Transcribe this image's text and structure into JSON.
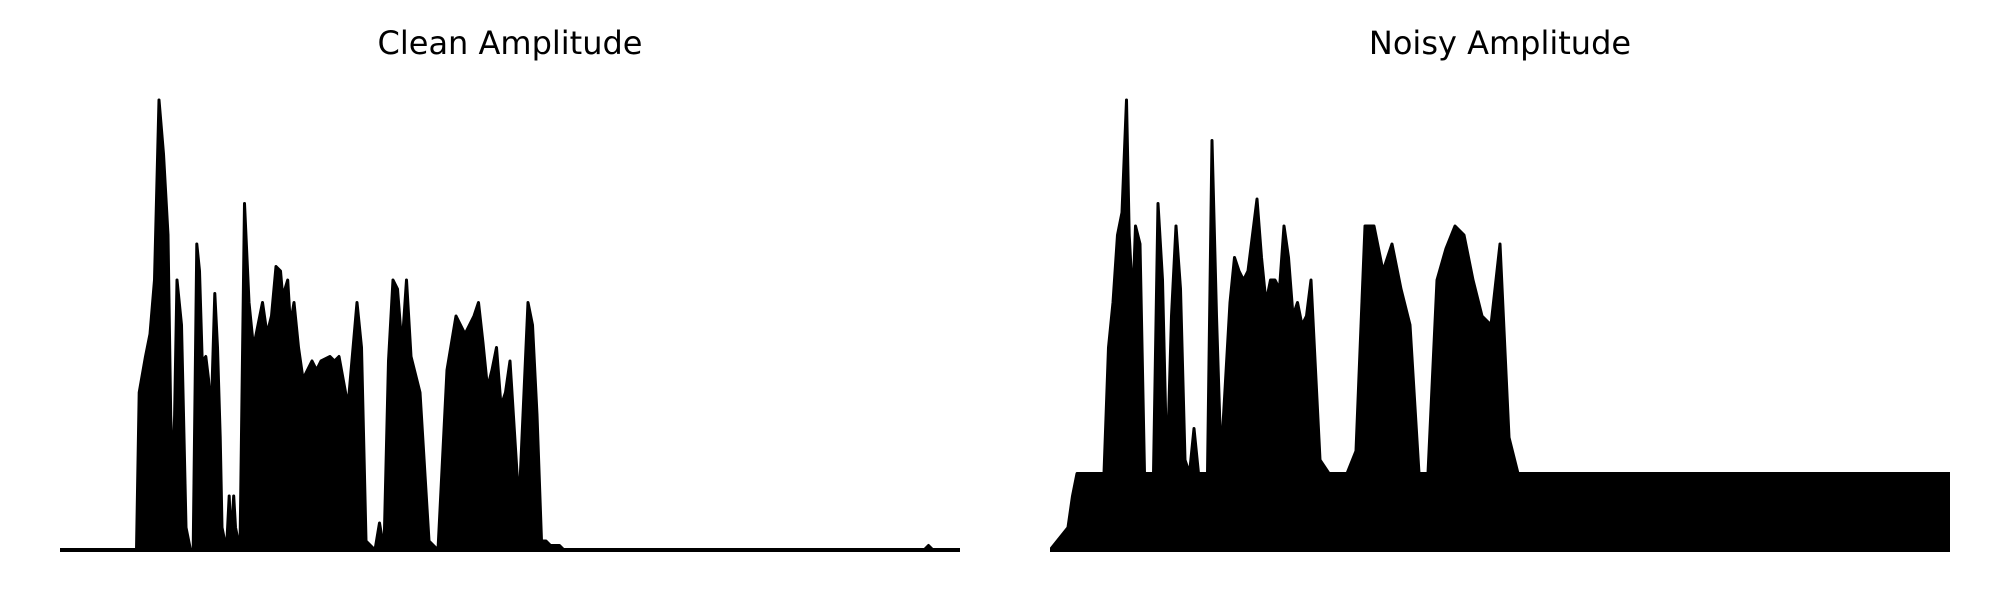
{
  "chart_data": [
    {
      "type": "area",
      "title": "Clean Amplitude",
      "xlabel": "",
      "ylabel": "",
      "xlim": [
        0,
        1
      ],
      "ylim": [
        0,
        1
      ],
      "grid": false,
      "axes_visible": false,
      "color": "#000000",
      "x": [
        0,
        0.05,
        0.085,
        0.088,
        0.095,
        0.1,
        0.105,
        0.11,
        0.115,
        0.12,
        0.123,
        0.126,
        0.13,
        0.135,
        0.14,
        0.145,
        0.148,
        0.152,
        0.155,
        0.158,
        0.162,
        0.165,
        0.168,
        0.172,
        0.175,
        0.178,
        0.18,
        0.185,
        0.188,
        0.19,
        0.193,
        0.195,
        0.2,
        0.205,
        0.21,
        0.215,
        0.218,
        0.222,
        0.225,
        0.23,
        0.235,
        0.24,
        0.245,
        0.248,
        0.25,
        0.253,
        0.256,
        0.26,
        0.265,
        0.27,
        0.275,
        0.28,
        0.285,
        0.29,
        0.3,
        0.305,
        0.31,
        0.32,
        0.33,
        0.335,
        0.34,
        0.35,
        0.355,
        0.36,
        0.365,
        0.37,
        0.375,
        0.38,
        0.385,
        0.39,
        0.4,
        0.41,
        0.42,
        0.43,
        0.44,
        0.45,
        0.46,
        0.465,
        0.47,
        0.475,
        0.48,
        0.485,
        0.49,
        0.495,
        0.5,
        0.51,
        0.52,
        0.525,
        0.53,
        0.535,
        0.54,
        0.545,
        0.55,
        0.555,
        0.56,
        0.565,
        0.57,
        0.575,
        0.58,
        0.585,
        0.59,
        0.6,
        0.61,
        0.62,
        0.63,
        0.64,
        0.645,
        0.65,
        0.655,
        0.66,
        0.665,
        0.67,
        0.675,
        0.68,
        0.685,
        0.69,
        0.695,
        0.7,
        0.705,
        0.71,
        0.72,
        0.73,
        0.74,
        0.8,
        0.9,
        0.96,
        0.965,
        0.97,
        1
      ],
      "values": [
        0,
        0,
        0,
        0.35,
        0.43,
        0.48,
        0.6,
        1.0,
        0.88,
        0.7,
        0.3,
        0.15,
        0.6,
        0.5,
        0.05,
        0,
        0,
        0.68,
        0.62,
        0.42,
        0.43,
        0.38,
        0.3,
        0.57,
        0.45,
        0.25,
        0.05,
        0,
        0.12,
        0.02,
        0.12,
        0.05,
        0,
        0.77,
        0.55,
        0.45,
        0.48,
        0.52,
        0.55,
        0.48,
        0.52,
        0.63,
        0.62,
        0.55,
        0.58,
        0.6,
        0.5,
        0.55,
        0.45,
        0.38,
        0.4,
        0.42,
        0.4,
        0.42,
        0.43,
        0.42,
        0.43,
        0.32,
        0.55,
        0.45,
        0.02,
        0,
        0.06,
        0.0,
        0.42,
        0.6,
        0.58,
        0.45,
        0.6,
        0.43,
        0.35,
        0.02,
        0,
        0.4,
        0.52,
        0.48,
        0.52,
        0.55,
        0.46,
        0.36,
        0.4,
        0.45,
        0.32,
        0.35,
        0.42,
        0.1,
        0.55,
        0.5,
        0.3,
        0.02,
        0.02,
        0.01,
        0.01,
        0.01,
        0,
        0,
        0,
        0,
        0,
        0,
        0,
        0,
        0,
        0,
        0,
        0,
        0,
        0,
        0,
        0,
        0,
        0,
        0,
        0,
        0,
        0,
        0,
        0,
        0,
        0,
        0,
        0,
        0,
        0,
        0,
        0,
        0.01,
        0,
        0
      ]
    },
    {
      "type": "area",
      "title": "Noisy Amplitude",
      "xlabel": "",
      "ylabel": "",
      "xlim": [
        0,
        1
      ],
      "ylim": [
        0,
        1
      ],
      "grid": false,
      "axes_visible": false,
      "color": "#000000",
      "x": [
        0,
        0.02,
        0.025,
        0.03,
        0.035,
        0.04,
        0.05,
        0.06,
        0.065,
        0.07,
        0.075,
        0.08,
        0.085,
        0.088,
        0.092,
        0.095,
        0.1,
        0.105,
        0.11,
        0.115,
        0.12,
        0.125,
        0.13,
        0.135,
        0.14,
        0.145,
        0.15,
        0.155,
        0.16,
        0.165,
        0.17,
        0.175,
        0.18,
        0.185,
        0.19,
        0.2,
        0.205,
        0.21,
        0.215,
        0.22,
        0.225,
        0.23,
        0.235,
        0.24,
        0.245,
        0.25,
        0.255,
        0.26,
        0.265,
        0.27,
        0.275,
        0.28,
        0.285,
        0.29,
        0.3,
        0.31,
        0.32,
        0.33,
        0.34,
        0.35,
        0.36,
        0.37,
        0.38,
        0.39,
        0.4,
        0.41,
        0.42,
        0.43,
        0.44,
        0.45,
        0.46,
        0.47,
        0.48,
        0.49,
        0.5,
        0.51,
        0.52,
        0.53,
        0.54,
        0.55,
        0.56,
        0.57,
        0.58,
        0.59,
        0.6,
        0.61,
        0.62,
        0.63,
        0.64,
        0.65,
        0.66,
        0.67,
        0.68,
        0.69,
        0.7,
        0.71,
        0.72,
        0.73,
        1
      ],
      "values": [
        0,
        0.05,
        0.12,
        0.17,
        0.17,
        0.17,
        0.17,
        0.17,
        0.45,
        0.55,
        0.7,
        0.75,
        1.0,
        0.7,
        0.55,
        0.72,
        0.68,
        0.17,
        0.17,
        0.17,
        0.77,
        0.6,
        0.17,
        0.52,
        0.72,
        0.58,
        0.2,
        0.17,
        0.27,
        0.17,
        0.17,
        0.17,
        0.91,
        0.52,
        0.2,
        0.55,
        0.65,
        0.62,
        0.6,
        0.62,
        0.7,
        0.78,
        0.65,
        0.55,
        0.6,
        0.6,
        0.58,
        0.72,
        0.65,
        0.52,
        0.55,
        0.5,
        0.52,
        0.6,
        0.2,
        0.17,
        0.17,
        0.17,
        0.22,
        0.72,
        0.72,
        0.62,
        0.68,
        0.58,
        0.5,
        0.17,
        0.17,
        0.6,
        0.67,
        0.72,
        0.7,
        0.6,
        0.52,
        0.5,
        0.68,
        0.25,
        0.17,
        0.17,
        0.17,
        0.17,
        0.17,
        0.17,
        0.17,
        0.17,
        0.17,
        0.17,
        0.17,
        0.17,
        0.17,
        0.17,
        0.17,
        0.17,
        0.17,
        0.17,
        0.17,
        0.17,
        0.17,
        0.17,
        0.17
      ]
    }
  ]
}
